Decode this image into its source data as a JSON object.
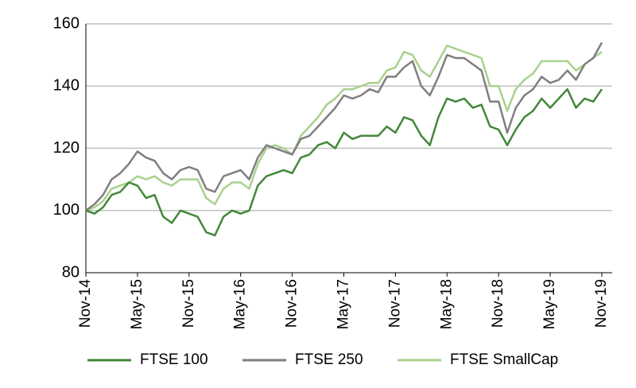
{
  "chart_data": {
    "type": "line",
    "categories": [
      "Nov-14",
      null,
      null,
      null,
      null,
      null,
      "May-15",
      null,
      null,
      null,
      null,
      null,
      "Nov-15",
      null,
      null,
      null,
      null,
      null,
      "May-16",
      null,
      null,
      null,
      null,
      null,
      "Nov-16",
      null,
      null,
      null,
      null,
      null,
      "May-17",
      null,
      null,
      null,
      null,
      null,
      "Nov-17",
      null,
      null,
      null,
      null,
      null,
      "May-18",
      null,
      null,
      null,
      null,
      null,
      "Nov-18",
      null,
      null,
      null,
      null,
      null,
      "May-19",
      null,
      null,
      null,
      null,
      null,
      "Nov-19"
    ],
    "series": [
      {
        "name": "FTSE 100",
        "color": "#43873a",
        "values": [
          100,
          99,
          101,
          105,
          106,
          109,
          108,
          104,
          105,
          98,
          96,
          100,
          99,
          98,
          93,
          92,
          98,
          100,
          99,
          100,
          108,
          111,
          112,
          113,
          112,
          117,
          118,
          121,
          122,
          120,
          125,
          123,
          124,
          124,
          124,
          127,
          125,
          130,
          129,
          124,
          121,
          130,
          136,
          135,
          136,
          133,
          134,
          127,
          126,
          121,
          126,
          130,
          132,
          136,
          133,
          136,
          139,
          133,
          136,
          135,
          139
        ]
      },
      {
        "name": "FTSE 250",
        "color": "#7f7f7f",
        "values": [
          100,
          102,
          105,
          110,
          112,
          115,
          119,
          117,
          116,
          112,
          110,
          113,
          114,
          113,
          107,
          106,
          111,
          112,
          113,
          110,
          117,
          121,
          120,
          119,
          118,
          123,
          124,
          127,
          130,
          133,
          137,
          136,
          137,
          139,
          138,
          143,
          143,
          146,
          148,
          140,
          137,
          143,
          150,
          149,
          149,
          147,
          145,
          135,
          135,
          125,
          133,
          137,
          139,
          143,
          141,
          142,
          145,
          142,
          147,
          149,
          154
        ]
      },
      {
        "name": "FTSE SmallCap",
        "color": "#a9d18e",
        "values": [
          100,
          101,
          103,
          107,
          108,
          109,
          111,
          110,
          111,
          109,
          108,
          110,
          110,
          110,
          104,
          102,
          107,
          109,
          109,
          107,
          115,
          120,
          121,
          120,
          118,
          124,
          127,
          130,
          134,
          136,
          139,
          139,
          140,
          141,
          141,
          145,
          146,
          151,
          150,
          145,
          143,
          148,
          153,
          152,
          151,
          150,
          149,
          140,
          140,
          132,
          139,
          142,
          144,
          148,
          148,
          148,
          148,
          145,
          147,
          149,
          151
        ]
      }
    ],
    "ylim": [
      80,
      160
    ],
    "yticks": [
      80,
      100,
      120,
      140,
      160
    ],
    "grid": true,
    "legend": "bottom"
  }
}
